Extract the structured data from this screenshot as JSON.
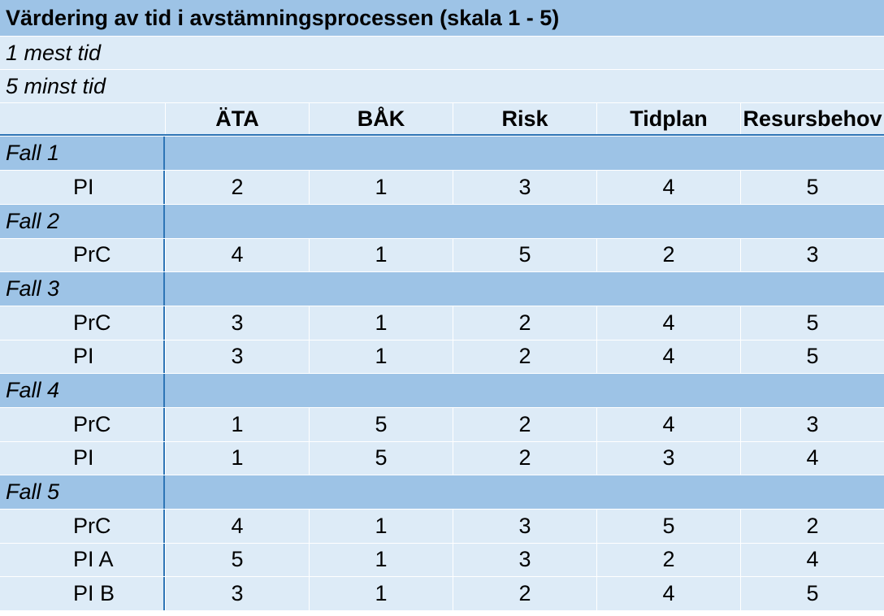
{
  "title": "Värdering av tid i avstämningsprocessen (skala 1 - 5)",
  "notes": [
    "1 mest tid",
    "5 minst tid"
  ],
  "columns": [
    "ÄTA",
    "BÅK",
    "Risk",
    "Tidplan",
    "Resursbehov"
  ],
  "cases": [
    {
      "name": "Fall 1",
      "rows": [
        {
          "label": "PI",
          "values": [
            "2",
            "1",
            "3",
            "4",
            "5"
          ]
        }
      ]
    },
    {
      "name": "Fall 2",
      "rows": [
        {
          "label": "PrC",
          "values": [
            "4",
            "1",
            "5",
            "2",
            "3"
          ]
        }
      ]
    },
    {
      "name": "Fall 3",
      "rows": [
        {
          "label": "PrC",
          "values": [
            "3",
            "1",
            "2",
            "4",
            "5"
          ]
        },
        {
          "label": "PI",
          "values": [
            "3",
            "1",
            "2",
            "4",
            "5"
          ]
        }
      ]
    },
    {
      "name": "Fall 4",
      "rows": [
        {
          "label": "PrC",
          "values": [
            "1",
            "5",
            "2",
            "4",
            "3"
          ]
        },
        {
          "label": "PI",
          "values": [
            "1",
            "5",
            "2",
            "3",
            "4"
          ]
        }
      ]
    },
    {
      "name": "Fall 5",
      "rows": [
        {
          "label": "PrC",
          "values": [
            "4",
            "1",
            "3",
            "5",
            "2"
          ]
        },
        {
          "label": "PI A",
          "values": [
            "5",
            "1",
            "3",
            "2",
            "4"
          ]
        },
        {
          "label": "PI B",
          "values": [
            "3",
            "1",
            "2",
            "4",
            "5"
          ]
        }
      ]
    }
  ]
}
